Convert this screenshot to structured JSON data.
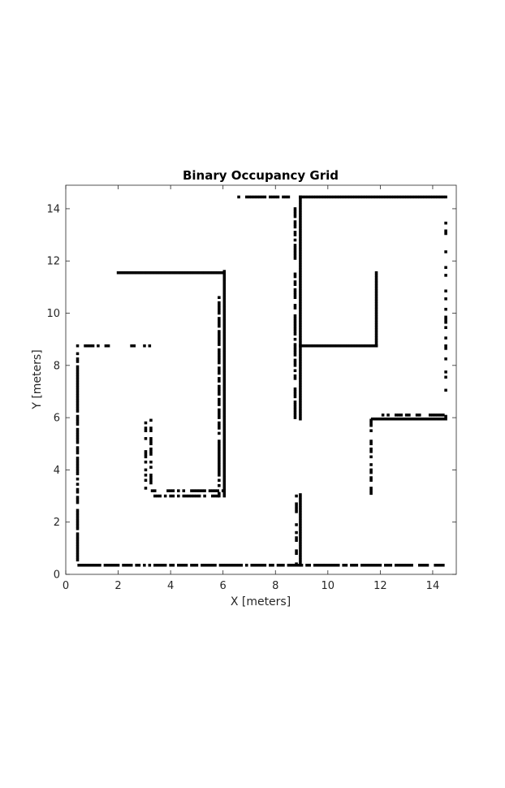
{
  "chart_data": {
    "type": "heatmap",
    "title": "Binary Occupancy Grid",
    "xlabel": "X [meters]",
    "ylabel": "Y [meters]",
    "xlim": [
      0,
      14.9
    ],
    "ylim": [
      0,
      14.9
    ],
    "xticks": [
      0,
      2,
      4,
      6,
      8,
      10,
      12,
      14
    ],
    "yticks": [
      0,
      2,
      4,
      6,
      8,
      10,
      12,
      14
    ],
    "grid": false,
    "colors": {
      "occupied": "#000000",
      "free": "#ffffff",
      "axes": "#262626"
    },
    "resolution_m": 0.1,
    "segments": [
      {
        "x1": 0.4,
        "y1": 0.35,
        "x2": 14.5,
        "y2": 0.35,
        "pattern": "dashed"
      },
      {
        "x1": 0.45,
        "y1": 0.35,
        "x2": 0.45,
        "y2": 8.75,
        "pattern": "dashed"
      },
      {
        "x1": 0.45,
        "y1": 8.75,
        "x2": 3.2,
        "y2": 8.75,
        "pattern": "dotted"
      },
      {
        "x1": 2.0,
        "y1": 11.55,
        "x2": 6.0,
        "y2": 11.55,
        "pattern": "solid"
      },
      {
        "x1": 6.05,
        "y1": 3.0,
        "x2": 6.05,
        "y2": 11.6,
        "pattern": "solid"
      },
      {
        "x1": 5.85,
        "y1": 3.0,
        "x2": 5.85,
        "y2": 10.6,
        "pattern": "dashed"
      },
      {
        "x1": 3.2,
        "y1": 3.0,
        "x2": 6.0,
        "y2": 3.0,
        "pattern": "dotted"
      },
      {
        "x1": 3.3,
        "y1": 3.2,
        "x2": 6.0,
        "y2": 3.2,
        "pattern": "dashed"
      },
      {
        "x1": 3.05,
        "y1": 3.3,
        "x2": 3.05,
        "y2": 5.9,
        "pattern": "dotted"
      },
      {
        "x1": 3.25,
        "y1": 3.5,
        "x2": 3.25,
        "y2": 5.9,
        "pattern": "dotted"
      },
      {
        "x1": 6.6,
        "y1": 14.45,
        "x2": 8.5,
        "y2": 14.45,
        "pattern": "dotted"
      },
      {
        "x1": 8.95,
        "y1": 14.45,
        "x2": 14.5,
        "y2": 14.45,
        "pattern": "solid"
      },
      {
        "x1": 8.95,
        "y1": 5.95,
        "x2": 8.95,
        "y2": 14.45,
        "pattern": "solid"
      },
      {
        "x1": 8.75,
        "y1": 6.0,
        "x2": 8.75,
        "y2": 14.0,
        "pattern": "dashed"
      },
      {
        "x1": 8.95,
        "y1": 8.75,
        "x2": 11.85,
        "y2": 8.75,
        "pattern": "solid"
      },
      {
        "x1": 11.85,
        "y1": 8.75,
        "x2": 11.85,
        "y2": 11.55,
        "pattern": "solid"
      },
      {
        "x1": 8.95,
        "y1": 0.35,
        "x2": 8.95,
        "y2": 3.05,
        "pattern": "solid"
      },
      {
        "x1": 8.8,
        "y1": 0.4,
        "x2": 8.8,
        "y2": 3.1,
        "pattern": "dotted"
      },
      {
        "x1": 11.7,
        "y1": 5.95,
        "x2": 14.5,
        "y2": 5.95,
        "pattern": "solid"
      },
      {
        "x1": 11.9,
        "y1": 6.1,
        "x2": 14.4,
        "y2": 6.1,
        "pattern": "dashed"
      },
      {
        "x1": 11.65,
        "y1": 3.1,
        "x2": 11.65,
        "y2": 5.9,
        "pattern": "dotted"
      },
      {
        "x1": 14.5,
        "y1": 5.95,
        "x2": 14.5,
        "y2": 14.45,
        "pattern": "sparse"
      }
    ]
  }
}
